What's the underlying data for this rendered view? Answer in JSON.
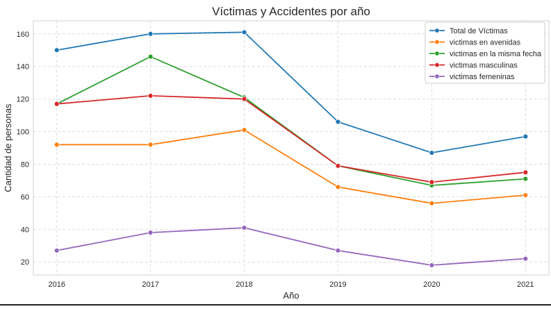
{
  "chart_data": {
    "type": "line",
    "title": "Víctimas y Accidentes por año",
    "xlabel": "Año",
    "ylabel": "Cantidad de personas",
    "x": [
      2016,
      2017,
      2018,
      2019,
      2020,
      2021
    ],
    "xlim": [
      2015.75,
      2021.25
    ],
    "ylim": [
      12,
      168
    ],
    "yticks": [
      20,
      40,
      60,
      80,
      100,
      120,
      140,
      160
    ],
    "grid": true,
    "legend_position": "top-right",
    "series": [
      {
        "name": "Total de Víctimas",
        "color": "#1f77b4",
        "values": [
          150,
          160,
          161,
          106,
          87,
          97
        ]
      },
      {
        "name": "victimas en avenidas",
        "color": "#ff7f0e",
        "values": [
          92,
          92,
          101,
          66,
          56,
          61
        ]
      },
      {
        "name": "victimas en la misma fecha",
        "color": "#2ca02c",
        "values": [
          117,
          146,
          121,
          79,
          67,
          71
        ]
      },
      {
        "name": "victimas masculinas",
        "color": "#d62728",
        "values": [
          117,
          122,
          120,
          79,
          69,
          75
        ]
      },
      {
        "name": "victimas femeninas",
        "color": "#9467bd",
        "values": [
          27,
          38,
          41,
          27,
          18,
          22
        ]
      }
    ]
  }
}
